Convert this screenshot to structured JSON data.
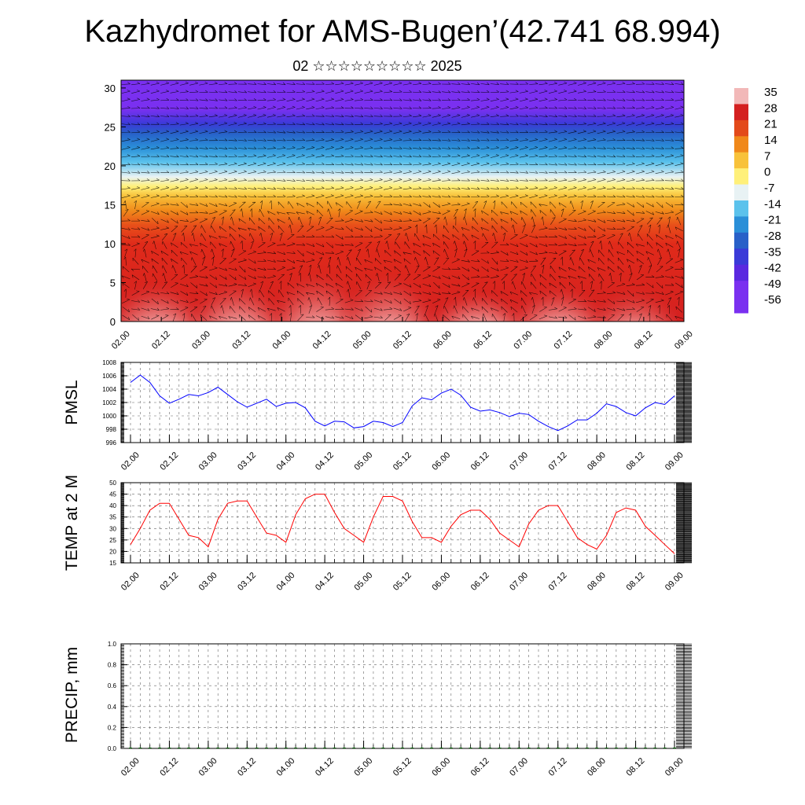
{
  "title": "Kazhydromet for AMS-Bugen’(42.741 68.994)",
  "subtitle": "02 ☆☆☆☆☆☆☆☆☆ 2025",
  "chart_data": [
    {
      "type": "heatmap",
      "x_tick_labels": [
        "02.00",
        "02.12",
        "03.00",
        "03.12",
        "04.00",
        "04.12",
        "05.00",
        "05.12",
        "06.00",
        "06.12",
        "07.00",
        "07.12",
        "08.00",
        "08.12",
        "09.00"
      ],
      "y_tick_labels": [
        "0",
        "5",
        "10",
        "15",
        "20",
        "25",
        "30"
      ],
      "ylim": [
        0,
        31
      ],
      "colorbar_labels": [
        "35",
        "28",
        "21",
        "14",
        "7",
        "0",
        "-7",
        "-14",
        "-21",
        "-28",
        "-35",
        "-42",
        "-49",
        "-56"
      ],
      "colorbar_colors": [
        "#f2b8b8",
        "#d42020",
        "#e34a1a",
        "#f0881a",
        "#f8c23a",
        "#fff07a",
        "#e8f2f4",
        "#5bc2ec",
        "#2a8fd8",
        "#2860c8",
        "#3a3ad8",
        "#5a28e0",
        "#7a30f0",
        "#7a30f0"
      ],
      "surface_temps": [
        23,
        30,
        38,
        41,
        41,
        34,
        27,
        26,
        22,
        34,
        41,
        42,
        42,
        35,
        28,
        27,
        24,
        36,
        43,
        45,
        45,
        37,
        30,
        27,
        24,
        35,
        44,
        44,
        42,
        33,
        26,
        26,
        24,
        31,
        36,
        38,
        38,
        34,
        28,
        25,
        22,
        32,
        38,
        40,
        40,
        33,
        26,
        23,
        21,
        27,
        37,
        39,
        38,
        31,
        27,
        23,
        19
      ],
      "wind_overlay": "arrows"
    },
    {
      "type": "line",
      "ylabel": "PMSL",
      "x_tick_labels": [
        "02.00",
        "02.12",
        "03.00",
        "03.12",
        "04.00",
        "04.12",
        "05.00",
        "05.12",
        "06.00",
        "06.12",
        "07.00",
        "07.12",
        "08.00",
        "08.12",
        "09.00"
      ],
      "ylim": [
        996,
        1008
      ],
      "y_ticks": [
        996,
        998,
        1000,
        1002,
        1004,
        1006,
        1008
      ],
      "line_color": "#0000ff",
      "values": [
        1005,
        1006.1,
        1005,
        1003,
        1001.9,
        1002.5,
        1003.2,
        1003,
        1003.5,
        1004.3,
        1003.2,
        1002.1,
        1001.3,
        1001.9,
        1002.5,
        1001.4,
        1001.9,
        1002,
        1001.2,
        999.2,
        998.5,
        999.2,
        999.1,
        998.2,
        998.4,
        999.2,
        999,
        998.4,
        999,
        1001.5,
        1002.7,
        1002.4,
        1003.4,
        1004,
        1003.1,
        1001.3,
        1000.7,
        1000.9,
        1000.5,
        999.9,
        1000.4,
        1000.2,
        999.2,
        998.4,
        997.8,
        998.5,
        999.4,
        999.4,
        1000.4,
        1001.8,
        1001.4,
        1000.5,
        1000,
        1001.2,
        1002,
        1001.7,
        1003
      ]
    },
    {
      "type": "line",
      "ylabel": "TEMP at 2 M",
      "x_tick_labels": [
        "02.00",
        "02.12",
        "03.00",
        "03.12",
        "04.00",
        "04.12",
        "05.00",
        "05.12",
        "06.00",
        "06.12",
        "07.00",
        "07.12",
        "08.00",
        "08.12",
        "09.00"
      ],
      "ylim": [
        15,
        50
      ],
      "y_ticks": [
        15,
        20,
        25,
        30,
        35,
        40,
        45,
        50
      ],
      "line_color": "#ff0000",
      "values": [
        23,
        30,
        38,
        41,
        41,
        34,
        27,
        26,
        22,
        34,
        41,
        42,
        42,
        35,
        28,
        27,
        24,
        36,
        43,
        45,
        45,
        37,
        30,
        27,
        24,
        35,
        44,
        44,
        42,
        33,
        26,
        26,
        24,
        31,
        36,
        38,
        38,
        34,
        28,
        25,
        22,
        32,
        38,
        40,
        40,
        33,
        26,
        23,
        21,
        27,
        37,
        39,
        38,
        31,
        27,
        23,
        19
      ]
    },
    {
      "type": "bar",
      "ylabel": "PRECIP, mm",
      "x_tick_labels": [
        "02.00",
        "02.12",
        "03.00",
        "03.12",
        "04.00",
        "04.12",
        "05.00",
        "05.12",
        "06.00",
        "06.12",
        "07.00",
        "07.12",
        "08.00",
        "08.12",
        "09.00"
      ],
      "ylim": [
        0,
        1.0
      ],
      "y_tick_labels": [
        "0.0",
        "0.2",
        "0.4",
        "0.6",
        "0.8",
        "1.0"
      ],
      "bar_color": "#006400",
      "values": [
        0,
        0,
        0,
        0,
        0,
        0,
        0,
        0,
        0,
        0,
        0,
        0,
        0,
        0,
        0,
        0,
        0,
        0,
        0,
        0,
        0,
        0,
        0,
        0,
        0,
        0,
        0,
        0,
        0,
        0,
        0,
        0,
        0,
        0,
        0,
        0,
        0,
        0,
        0,
        0,
        0,
        0,
        0,
        0,
        0,
        0,
        0,
        0,
        0,
        0,
        0,
        0,
        0,
        0,
        0,
        0,
        0
      ]
    }
  ]
}
